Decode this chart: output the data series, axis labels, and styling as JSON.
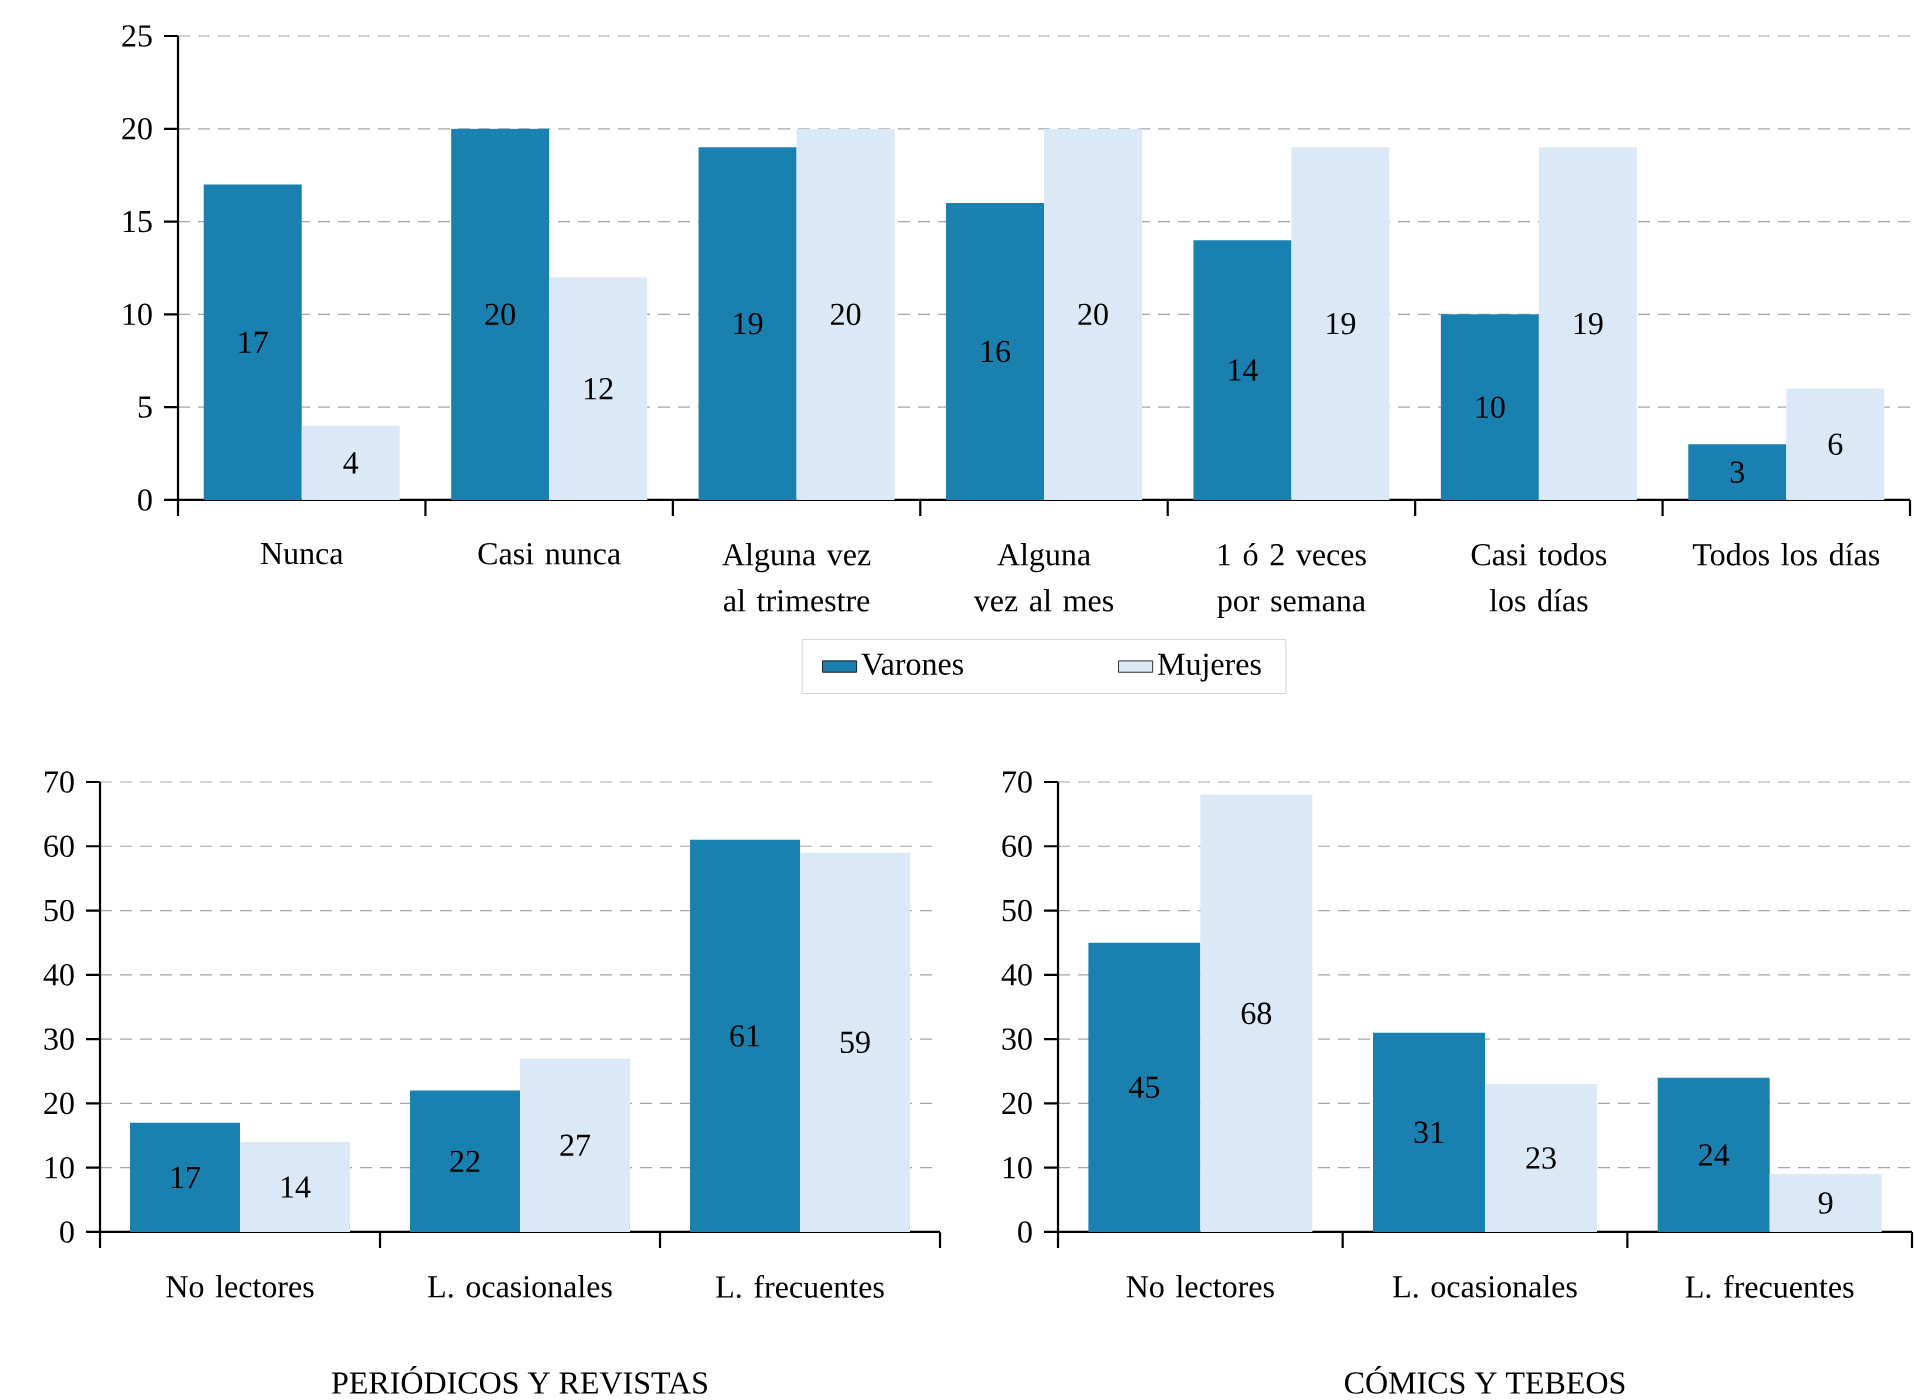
{
  "chart_data": [
    {
      "type": "bar",
      "categories": [
        "Nunca",
        "Casi nunca",
        "Alguna vez al trimestre",
        "Alguna vez al mes",
        "1 ó 2 veces por semana",
        "Casi todos los días",
        "Todos los días"
      ],
      "series": [
        {
          "name": "Varones",
          "color": "#1a80b0",
          "values": [
            17,
            20,
            19,
            16,
            14,
            10,
            3
          ]
        },
        {
          "name": "Mujeres",
          "color": "#dbe9f6",
          "values": [
            4,
            12,
            20,
            20,
            19,
            19,
            6
          ]
        }
      ],
      "ylim": [
        0,
        25
      ],
      "yticks": [
        0,
        5,
        10,
        15,
        20,
        25
      ],
      "grid": "y",
      "legend": "bottom",
      "data_labels": true
    },
    {
      "type": "bar",
      "title": "PERIÓDICOS Y REVISTAS",
      "categories": [
        "No lectores",
        "L. ocasionales",
        "L. frecuentes"
      ],
      "series": [
        {
          "color": "#1a80b0",
          "values": [
            17,
            22,
            61
          ]
        },
        {
          "color": "#dbe9f6",
          "values": [
            14,
            27,
            59
          ]
        }
      ],
      "ylim": [
        0,
        70
      ],
      "yticks": [
        0,
        10,
        20,
        30,
        40,
        50,
        60,
        70
      ],
      "grid": "y",
      "data_labels": true
    },
    {
      "type": "bar",
      "title": "CÓMICS Y TEBEOS",
      "categories": [
        "No lectores",
        "L. ocasionales",
        "L. frecuentes"
      ],
      "series": [
        {
          "color": "#1a80b0",
          "values": [
            45,
            31,
            24
          ]
        },
        {
          "color": "#dbe9f6",
          "values": [
            68,
            23,
            9
          ]
        }
      ],
      "ylim": [
        0,
        70
      ],
      "yticks": [
        0,
        10,
        20,
        30,
        40,
        50,
        60,
        70
      ],
      "grid": "y",
      "data_labels": true
    }
  ]
}
